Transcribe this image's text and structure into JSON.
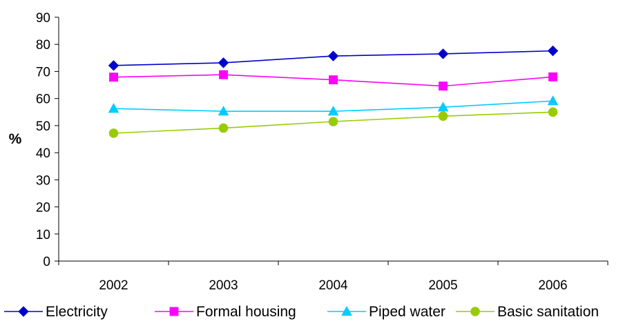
{
  "chart_data": {
    "type": "line",
    "title": "",
    "xlabel": "",
    "ylabel": "%",
    "categories": [
      "2002",
      "2003",
      "2004",
      "2005",
      "2006"
    ],
    "ylim": [
      0,
      90
    ],
    "yticks": [
      0,
      10,
      20,
      30,
      40,
      50,
      60,
      70,
      80,
      90
    ],
    "grid": false,
    "legend_position": "bottom",
    "series": [
      {
        "name": "Electricity",
        "color": "#0000CC",
        "marker": "diamond",
        "values": [
          72.2,
          73.2,
          75.7,
          76.5,
          77.6
        ]
      },
      {
        "name": "Formal housing",
        "color": "#FF00FF",
        "marker": "square",
        "values": [
          67.9,
          68.8,
          66.9,
          64.6,
          68.0
        ]
      },
      {
        "name": "Piped water",
        "color": "#00CCFF",
        "marker": "triangle",
        "values": [
          56.3,
          55.3,
          55.3,
          56.8,
          59.1
        ]
      },
      {
        "name": "Basic sanitation",
        "color": "#99CC00",
        "marker": "circle",
        "values": [
          47.2,
          49.1,
          51.5,
          53.5,
          55.0
        ]
      }
    ]
  }
}
